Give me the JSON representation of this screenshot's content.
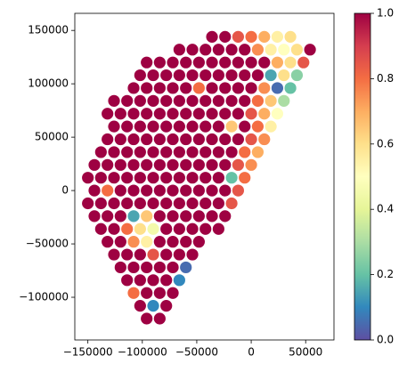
{
  "chart_data": {
    "type": "scatter",
    "x": [
      -96000,
      -84000,
      -102000,
      -90000,
      -78000,
      -108000,
      -96000,
      -84000,
      -72000,
      -114000,
      -102000,
      -90000,
      -78000,
      -66000,
      -120000,
      -108000,
      -96000,
      -84000,
      -72000,
      -60000,
      -126000,
      -114000,
      -102000,
      -90000,
      -78000,
      -66000,
      -54000,
      -132000,
      -120000,
      -108000,
      -96000,
      -84000,
      -72000,
      -60000,
      -48000,
      -138000,
      -126000,
      -114000,
      -102000,
      -90000,
      -78000,
      -66000,
      -54000,
      -42000,
      -30000,
      -144000,
      -132000,
      -120000,
      -108000,
      -96000,
      -84000,
      -72000,
      -60000,
      -48000,
      -36000,
      -24000,
      -150000,
      -138000,
      -126000,
      -114000,
      -102000,
      -90000,
      -78000,
      -66000,
      -54000,
      -42000,
      -30000,
      -18000,
      -144000,
      -132000,
      -120000,
      -108000,
      -96000,
      -84000,
      -72000,
      -60000,
      -48000,
      -36000,
      -24000,
      -12000,
      -150000,
      -138000,
      -126000,
      -114000,
      -102000,
      -90000,
      -78000,
      -66000,
      -54000,
      -42000,
      -30000,
      -18000,
      -6000,
      -144000,
      -132000,
      -120000,
      -108000,
      -96000,
      -84000,
      -72000,
      -60000,
      -48000,
      -36000,
      -24000,
      -12000,
      0,
      -138000,
      -126000,
      -114000,
      -102000,
      -90000,
      -78000,
      -66000,
      -54000,
      -42000,
      -30000,
      -18000,
      -6000,
      6000,
      -132000,
      -120000,
      -108000,
      -96000,
      -84000,
      -72000,
      -60000,
      -48000,
      -36000,
      -24000,
      -12000,
      0,
      12000,
      -126000,
      -114000,
      -102000,
      -90000,
      -78000,
      -66000,
      -54000,
      -42000,
      -30000,
      -18000,
      -6000,
      6000,
      18000,
      -132000,
      -120000,
      -108000,
      -96000,
      -84000,
      -72000,
      -60000,
      -48000,
      -36000,
      -24000,
      -12000,
      0,
      12000,
      24000,
      -126000,
      -114000,
      -102000,
      -90000,
      -78000,
      -66000,
      -54000,
      -42000,
      -30000,
      -18000,
      -6000,
      6000,
      18000,
      30000,
      -108000,
      -96000,
      -84000,
      -72000,
      -60000,
      -48000,
      -36000,
      -24000,
      -12000,
      0,
      12000,
      24000,
      36000,
      -102000,
      -90000,
      -78000,
      -66000,
      -54000,
      -42000,
      -30000,
      -18000,
      -6000,
      6000,
      18000,
      30000,
      42000,
      -96000,
      -84000,
      -72000,
      -60000,
      -48000,
      -36000,
      -24000,
      -12000,
      0,
      12000,
      24000,
      36000,
      48000,
      -66000,
      -54000,
      -42000,
      -30000,
      -18000,
      -6000,
      6000,
      18000,
      30000,
      42000,
      54000,
      -36000,
      -24000,
      -12000,
      0,
      12000,
      24000,
      36000
    ],
    "y": [
      -120000,
      -120000,
      -108000,
      -108000,
      -108000,
      -96000,
      -96000,
      -96000,
      -96000,
      -84000,
      -84000,
      -84000,
      -84000,
      -84000,
      -72000,
      -72000,
      -72000,
      -72000,
      -72000,
      -72000,
      -60000,
      -60000,
      -60000,
      -60000,
      -60000,
      -60000,
      -60000,
      -48000,
      -48000,
      -48000,
      -48000,
      -48000,
      -48000,
      -48000,
      -48000,
      -36000,
      -36000,
      -36000,
      -36000,
      -36000,
      -36000,
      -36000,
      -36000,
      -36000,
      -36000,
      -24000,
      -24000,
      -24000,
      -24000,
      -24000,
      -24000,
      -24000,
      -24000,
      -24000,
      -24000,
      -24000,
      -12000,
      -12000,
      -12000,
      -12000,
      -12000,
      -12000,
      -12000,
      -12000,
      -12000,
      -12000,
      -12000,
      -12000,
      0,
      0,
      0,
      0,
      0,
      0,
      0,
      0,
      0,
      0,
      0,
      0,
      12000,
      12000,
      12000,
      12000,
      12000,
      12000,
      12000,
      12000,
      12000,
      12000,
      12000,
      12000,
      12000,
      24000,
      24000,
      24000,
      24000,
      24000,
      24000,
      24000,
      24000,
      24000,
      24000,
      24000,
      24000,
      24000,
      36000,
      36000,
      36000,
      36000,
      36000,
      36000,
      36000,
      36000,
      36000,
      36000,
      36000,
      36000,
      36000,
      48000,
      48000,
      48000,
      48000,
      48000,
      48000,
      48000,
      48000,
      48000,
      48000,
      48000,
      48000,
      48000,
      60000,
      60000,
      60000,
      60000,
      60000,
      60000,
      60000,
      60000,
      60000,
      60000,
      60000,
      60000,
      60000,
      72000,
      72000,
      72000,
      72000,
      72000,
      72000,
      72000,
      72000,
      72000,
      72000,
      72000,
      72000,
      72000,
      72000,
      84000,
      84000,
      84000,
      84000,
      84000,
      84000,
      84000,
      84000,
      84000,
      84000,
      84000,
      84000,
      84000,
      84000,
      96000,
      96000,
      96000,
      96000,
      96000,
      96000,
      96000,
      96000,
      96000,
      96000,
      96000,
      96000,
      96000,
      108000,
      108000,
      108000,
      108000,
      108000,
      108000,
      108000,
      108000,
      108000,
      108000,
      108000,
      108000,
      108000,
      120000,
      120000,
      120000,
      120000,
      120000,
      120000,
      120000,
      120000,
      120000,
      120000,
      120000,
      120000,
      120000,
      132000,
      132000,
      132000,
      132000,
      132000,
      132000,
      132000,
      132000,
      132000,
      132000,
      132000,
      144000,
      144000,
      144000,
      144000,
      144000,
      144000,
      144000
    ],
    "values": [
      1,
      1,
      1,
      0.1,
      1,
      0.8,
      1,
      1,
      1,
      1,
      1,
      1,
      1,
      0.1,
      1,
      1,
      1,
      1,
      1,
      0.05,
      1,
      1,
      1,
      0.85,
      1,
      1,
      1,
      1,
      1,
      0.75,
      0.55,
      1,
      1,
      1,
      1,
      1,
      1,
      0.8,
      0.6,
      0.45,
      1,
      1,
      1,
      1,
      1,
      1,
      1,
      1,
      0.15,
      0.65,
      1,
      1,
      1,
      1,
      1,
      1,
      1,
      1,
      1,
      1,
      1,
      1,
      1,
      1,
      1,
      1,
      1,
      0.85,
      1,
      0.8,
      1,
      1,
      1,
      1,
      1,
      1,
      1,
      1,
      1,
      0.85,
      1,
      1,
      1,
      1,
      1,
      1,
      1,
      1,
      1,
      1,
      1,
      0.2,
      0.8,
      1,
      1,
      1,
      1,
      1,
      1,
      1,
      1,
      1,
      1,
      1,
      0.85,
      0.75,
      1,
      1,
      1,
      1,
      1,
      1,
      1,
      1,
      1,
      1,
      1,
      0.8,
      0.7,
      1,
      1,
      1,
      1,
      1,
      1,
      1,
      1,
      1,
      1,
      1,
      0.85,
      0.75,
      1,
      1,
      1,
      1,
      1,
      1,
      1,
      1,
      1,
      0.65,
      1,
      0.8,
      0.55,
      1,
      1,
      1,
      1,
      1,
      1,
      1,
      1,
      1,
      1,
      1,
      0.85,
      0.7,
      0.5,
      1,
      1,
      1,
      1,
      1,
      1,
      1,
      1,
      1,
      1,
      1,
      0.8,
      0.65,
      0.3,
      1,
      1,
      1,
      1,
      1,
      0.8,
      1,
      1,
      1,
      1,
      0.75,
      0.05,
      0.2,
      1,
      1,
      1,
      1,
      1,
      1,
      1,
      1,
      1,
      1,
      0.15,
      0.6,
      0.25,
      1,
      1,
      1,
      1,
      1,
      1,
      1,
      1,
      1,
      1,
      0.7,
      0.6,
      0.85,
      1,
      1,
      1,
      1,
      1,
      1,
      0.75,
      0.55,
      0.5,
      0.6,
      1,
      1,
      1,
      0.85,
      0.8,
      0.7,
      0.55,
      0.6
    ],
    "colormap": "Spectral",
    "clim": [
      0,
      1
    ],
    "xlim": [
      -162000,
      76000
    ],
    "ylim": [
      -140000,
      166000
    ],
    "xticks": [
      {
        "value": -150000,
        "label": "−150000"
      },
      {
        "value": -100000,
        "label": "−100000"
      },
      {
        "value": -50000,
        "label": "−50000"
      },
      0,
      50000
    ],
    "yticks": [
      {
        "value": -100000,
        "label": "−100000"
      },
      {
        "value": -50000,
        "label": "−50000"
      },
      0,
      50000,
      100000,
      150000
    ],
    "cticks": [
      {
        "value": 0,
        "label": "0.0"
      },
      0.2,
      0.4,
      0.6,
      0.8,
      {
        "value": 1,
        "label": "1.0"
      }
    ]
  }
}
